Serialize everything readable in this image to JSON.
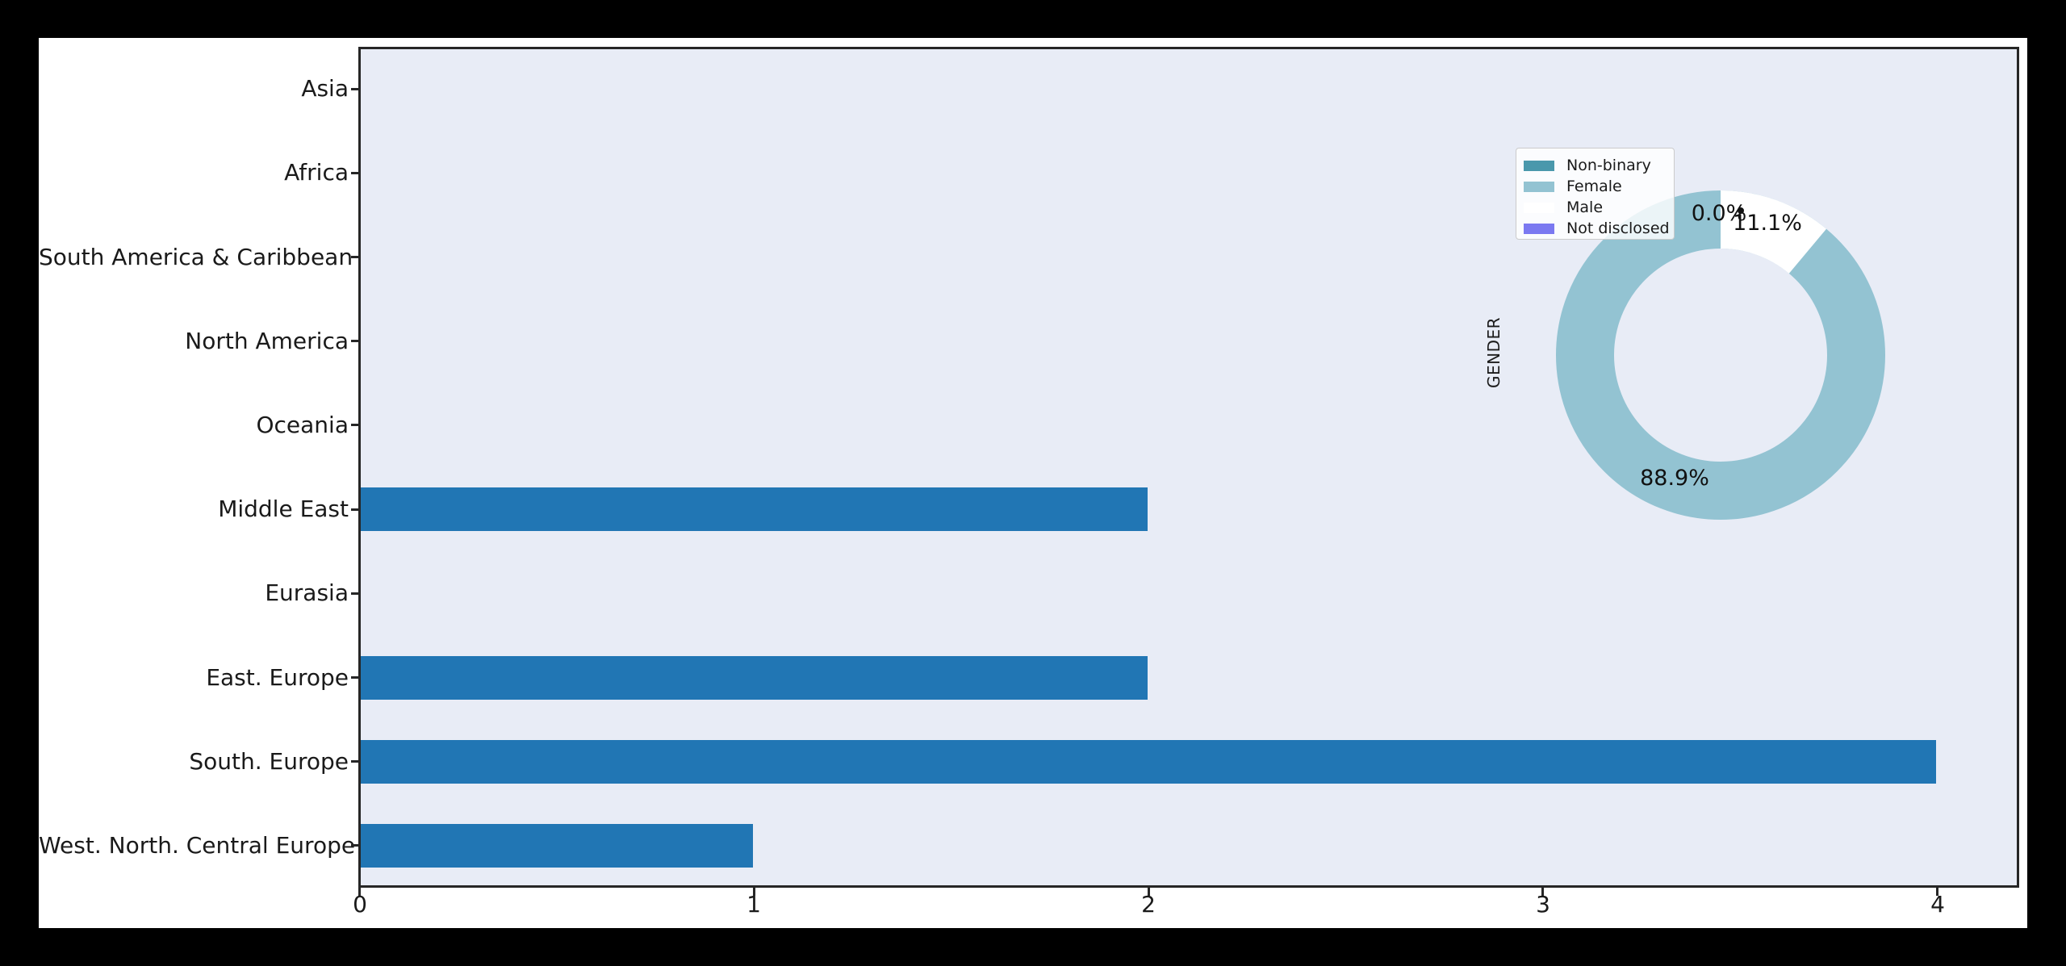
{
  "figure": {
    "outer_background": "#000000",
    "canvas_background": "#ffffff",
    "plot_background": "#e8ecf6",
    "spine_color": "#262626"
  },
  "chart_data": [
    {
      "type": "bar",
      "orientation": "horizontal",
      "title": "",
      "xlabel": "",
      "ylabel": "",
      "categories": [
        "Asia",
        "Africa",
        "South America & Caribbean",
        "North America",
        "Oceania",
        "Middle East",
        "Eurasia",
        "East. Europe",
        "South. Europe",
        "West. North. Central Europe"
      ],
      "values": [
        0,
        0,
        0,
        0,
        0,
        2,
        0,
        2,
        4,
        1
      ],
      "bar_color": "#2176b4",
      "xlim": [
        0,
        4.21
      ],
      "xticks": [
        "0",
        "1",
        "2",
        "3",
        "4"
      ],
      "grid": false,
      "legend_position": "none"
    },
    {
      "type": "pie",
      "subtype": "donut",
      "ylabel": "GENDER",
      "start_angle_deg": 90,
      "direction": "counterclockwise",
      "legend_position": "upper left of pie",
      "slices": [
        {
          "label": "Non-binary",
          "value": 0.0,
          "pct_label": "0.0%",
          "color": "#4a98ac"
        },
        {
          "label": "Female",
          "value": 88.9,
          "pct_label": "88.9%",
          "color": "#93c3d2"
        },
        {
          "label": "Male",
          "value": 11.1,
          "pct_label": "11.1%",
          "color": "#ffffff"
        },
        {
          "label": "Not disclosed",
          "value": 0.0,
          "pct_label": "",
          "color": "#7b79f1"
        }
      ]
    }
  ]
}
